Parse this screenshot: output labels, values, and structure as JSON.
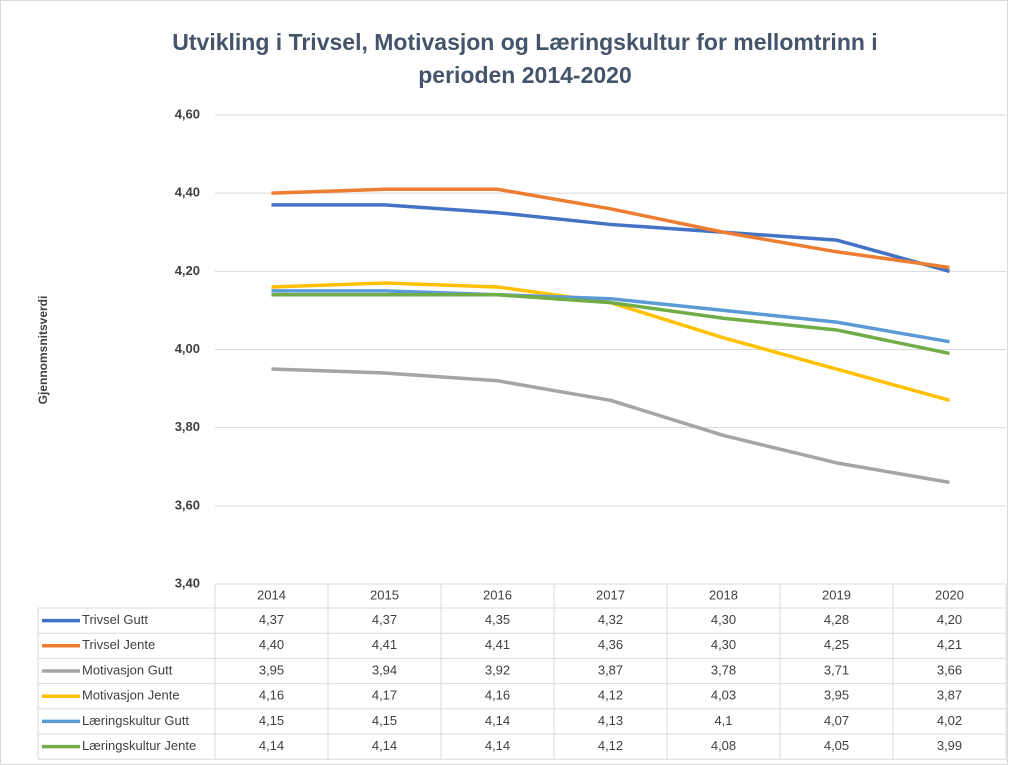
{
  "chart_data": {
    "type": "line",
    "title": "Utvikling i Trivsel, Motivasjon og Læringskultur for mellomtrinn i perioden 2014-2020",
    "y_label": "Gjennomsnitsverdi",
    "categories": [
      "2014",
      "2015",
      "2016",
      "2017",
      "2018",
      "2019",
      "2020"
    ],
    "ylim": [
      3.4,
      4.6
    ],
    "yticks": [
      {
        "value": 3.4,
        "label": "3,40"
      },
      {
        "value": 3.6,
        "label": "3,60"
      },
      {
        "value": 3.8,
        "label": "3,80"
      },
      {
        "value": 4.0,
        "label": "4,00"
      },
      {
        "value": 4.2,
        "label": "4,20"
      },
      {
        "value": 4.4,
        "label": "4,40"
      },
      {
        "value": 4.6,
        "label": "4,60"
      }
    ],
    "grid": true,
    "series": [
      {
        "name": "Trivsel Gutt",
        "color": "#4472c4",
        "values": [
          4.37,
          4.37,
          4.35,
          4.32,
          4.3,
          4.28,
          4.2
        ],
        "value_labels": [
          "4,37",
          "4,37",
          "4,35",
          "4,32",
          "4,30",
          "4,28",
          "4,20"
        ]
      },
      {
        "name": "Trivsel Jente",
        "color": "#ed7d31",
        "values": [
          4.4,
          4.41,
          4.41,
          4.36,
          4.3,
          4.25,
          4.21
        ],
        "value_labels": [
          "4,40",
          "4,41",
          "4,41",
          "4,36",
          "4,30",
          "4,25",
          "4,21"
        ]
      },
      {
        "name": "Motivasjon Gutt",
        "color": "#a5a5a5",
        "values": [
          3.95,
          3.94,
          3.92,
          3.87,
          3.78,
          3.71,
          3.66
        ],
        "value_labels": [
          "3,95",
          "3,94",
          "3,92",
          "3,87",
          "3,78",
          "3,71",
          "3,66"
        ]
      },
      {
        "name": "Motivasjon Jente",
        "color": "#ffc000",
        "values": [
          4.16,
          4.17,
          4.16,
          4.12,
          4.03,
          3.95,
          3.87
        ],
        "value_labels": [
          "4,16",
          "4,17",
          "4,16",
          "4,12",
          "4,03",
          "3,95",
          "3,87"
        ]
      },
      {
        "name": "Læringskultur Gutt",
        "color": "#5b9bd5",
        "values": [
          4.15,
          4.15,
          4.14,
          4.13,
          4.1,
          4.07,
          4.02
        ],
        "value_labels": [
          "4,15",
          "4,15",
          "4,14",
          "4,13",
          "4,1",
          "4,07",
          "4,02"
        ]
      },
      {
        "name": "Læringskultur Jente",
        "color": "#70ad47",
        "values": [
          4.14,
          4.14,
          4.14,
          4.12,
          4.08,
          4.05,
          3.99
        ],
        "value_labels": [
          "4,14",
          "4,14",
          "4,14",
          "4,12",
          "4,08",
          "4,05",
          "3,99"
        ]
      }
    ]
  }
}
